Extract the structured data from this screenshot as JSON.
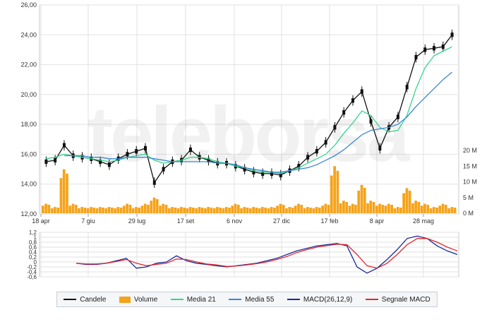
{
  "watermark": "teleborsa",
  "colors": {
    "candle": "#111111",
    "volume": "#f5a31a",
    "media21": "#33d68a",
    "media55": "#3b86d8",
    "macd": "#1a2a9c",
    "signal": "#e0282e",
    "grid": "#e2e2e2"
  },
  "legend": [
    {
      "label": "Candele",
      "color": "#111111",
      "kind": "line",
      "icon": "candle-line-icon"
    },
    {
      "label": "Volume",
      "color": "#f5a31a",
      "kind": "box",
      "icon": "volume-box-icon"
    },
    {
      "label": "Media 21",
      "color": "#33d68a",
      "kind": "line",
      "icon": "media21-line-icon"
    },
    {
      "label": "Media 55",
      "color": "#3b86d8",
      "kind": "line",
      "icon": "media55-line-icon"
    },
    {
      "label": "MACD(26,12,9)",
      "color": "#1a2a9c",
      "kind": "line",
      "icon": "macd-line-icon"
    },
    {
      "label": "Segnale MACD",
      "color": "#e0282e",
      "kind": "line",
      "icon": "signal-line-icon"
    }
  ],
  "chart_data": [
    {
      "type": "line",
      "panel": "price",
      "ylim": [
        12,
        26
      ],
      "yticks": [
        "12,00",
        "14,00",
        "16,00",
        "18,00",
        "20,00",
        "22,00",
        "24,00",
        "26,00"
      ],
      "xticks": [
        "18 apr",
        "7 giu",
        "29 lug",
        "17 set",
        "6 nov",
        "27 dic",
        "17 feb",
        "8 apr",
        "28 mag"
      ],
      "grid": true,
      "series": [
        {
          "name": "Candele",
          "values": [
            15.5,
            15.6,
            16.6,
            15.9,
            15.8,
            15.7,
            15.5,
            15.3,
            15.7,
            16.0,
            16.2,
            16.4,
            14.1,
            15.0,
            15.5,
            15.6,
            16.3,
            15.8,
            15.6,
            15.4,
            15.4,
            15.2,
            15.0,
            14.8,
            14.7,
            14.7,
            14.6,
            14.9,
            15.2,
            15.8,
            16.2,
            16.8,
            17.8,
            18.8,
            19.6,
            20.2,
            18.2,
            16.4,
            17.8,
            18.5,
            20.5,
            22.5,
            23.0,
            23.1,
            23.2,
            24.0
          ]
        },
        {
          "name": "Media 21",
          "values": [
            15.7,
            15.8,
            16.0,
            15.9,
            15.8,
            15.7,
            15.6,
            15.5,
            15.6,
            15.8,
            15.9,
            16.0,
            15.6,
            15.4,
            15.5,
            15.6,
            15.8,
            15.8,
            15.7,
            15.5,
            15.4,
            15.2,
            15.1,
            14.9,
            14.8,
            14.8,
            14.7,
            14.9,
            15.1,
            15.4,
            15.7,
            16.0,
            16.6,
            17.4,
            18.1,
            18.9,
            18.6,
            17.8,
            17.5,
            17.6,
            18.6,
            20.4,
            21.8,
            22.6,
            22.9,
            23.2
          ]
        },
        {
          "name": "Media 55",
          "values": [
            null,
            null,
            15.9,
            15.9,
            15.9,
            15.8,
            15.8,
            15.7,
            15.7,
            15.8,
            15.8,
            15.8,
            15.7,
            15.6,
            15.5,
            15.5,
            15.5,
            15.5,
            15.5,
            15.4,
            15.4,
            15.3,
            15.1,
            15.0,
            14.9,
            14.8,
            14.8,
            14.9,
            15.0,
            15.1,
            15.3,
            15.6,
            15.9,
            16.3,
            16.8,
            17.3,
            17.6,
            17.7,
            17.8,
            18.0,
            18.5,
            19.2,
            19.8,
            20.4,
            21.0,
            21.5
          ]
        }
      ]
    },
    {
      "type": "bar",
      "panel": "volume",
      "ylim": [
        0,
        25
      ],
      "yticks": [
        "0 M",
        "5 M",
        "10 M",
        "15 M",
        "20 M"
      ],
      "series": [
        {
          "name": "Volume",
          "values": [
            3,
            2,
            14,
            3,
            2,
            2,
            2,
            2,
            2,
            3,
            2,
            3,
            5,
            3,
            2,
            2,
            2,
            2,
            2,
            2,
            2,
            3,
            2,
            2,
            2,
            2,
            3,
            2,
            3,
            2,
            2,
            3,
            15,
            4,
            3,
            9,
            4,
            3,
            3,
            2,
            8,
            4,
            3,
            2,
            3,
            2
          ]
        }
      ]
    },
    {
      "type": "line",
      "panel": "macd",
      "ylim": [
        -0.6,
        1.2
      ],
      "yticks": [
        "-0,6",
        "-0,4",
        "-0,2",
        "0",
        "0,2",
        "0,4",
        "0,6",
        "0,8",
        "1",
        "1,2"
      ],
      "series": [
        {
          "name": "MACD(26,12,9)",
          "values": [
            -0.05,
            -0.1,
            -0.1,
            -0.05,
            0.05,
            0.15,
            -0.25,
            -0.2,
            -0.05,
            0.0,
            0.25,
            0.05,
            -0.05,
            -0.1,
            -0.15,
            -0.2,
            -0.15,
            -0.1,
            -0.05,
            0.05,
            0.15,
            0.3,
            0.45,
            0.55,
            0.65,
            0.7,
            0.75,
            0.65,
            -0.2,
            -0.45,
            -0.25,
            0.1,
            0.5,
            0.95,
            1.05,
            0.95,
            0.65,
            0.45,
            0.3
          ]
        },
        {
          "name": "Segnale MACD",
          "values": [
            -0.05,
            -0.08,
            -0.08,
            -0.05,
            0.02,
            0.1,
            -0.05,
            -0.15,
            -0.1,
            -0.05,
            0.12,
            0.1,
            0.0,
            -0.08,
            -0.12,
            -0.18,
            -0.16,
            -0.12,
            -0.07,
            0.0,
            0.1,
            0.22,
            0.38,
            0.5,
            0.6,
            0.66,
            0.72,
            0.7,
            0.3,
            -0.15,
            -0.25,
            -0.05,
            0.3,
            0.7,
            0.95,
            0.95,
            0.8,
            0.6,
            0.45
          ]
        }
      ]
    }
  ]
}
